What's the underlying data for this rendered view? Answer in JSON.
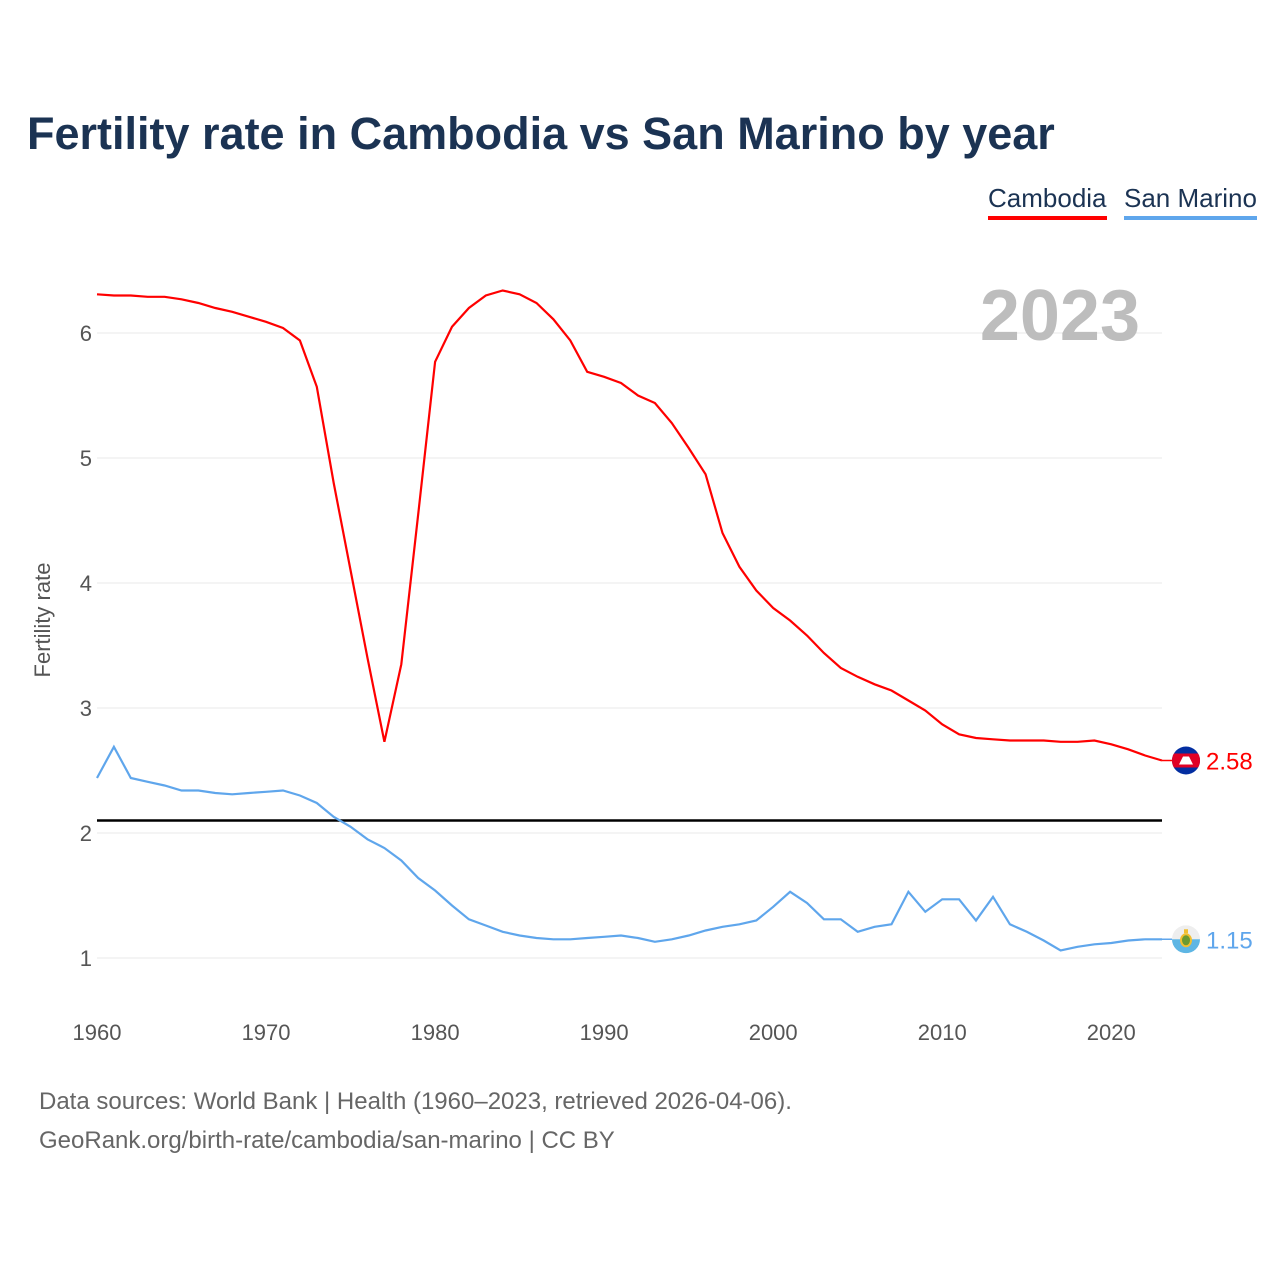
{
  "title": "Fertility rate in Cambodia vs San Marino by year",
  "legend": [
    "Cambodia",
    "San Marino"
  ],
  "year_watermark": "2023",
  "sources": {
    "line1": "Data sources: World Bank | Health (1960–2023, retrieved 2026-04-06).",
    "line2": "GeoRank.org/birth-rate/cambodia/san-marino | CC BY"
  },
  "chart_data": {
    "type": "line",
    "title": "Fertility rate in Cambodia vs San Marino by year",
    "xlabel": "",
    "ylabel": "Fertility rate",
    "xlim": [
      1960,
      2023
    ],
    "ylim": [
      0.6,
      6.6
    ],
    "x_ticks": [
      1960,
      1970,
      1980,
      1990,
      2000,
      2010,
      2020
    ],
    "y_ticks": [
      1,
      2,
      3,
      4,
      5,
      6
    ],
    "grid": true,
    "legend_position": "top-right",
    "reference_line": 2.1,
    "x": [
      1960,
      1961,
      1962,
      1963,
      1964,
      1965,
      1966,
      1967,
      1968,
      1969,
      1970,
      1971,
      1972,
      1973,
      1974,
      1975,
      1976,
      1977,
      1978,
      1979,
      1980,
      1981,
      1982,
      1983,
      1984,
      1985,
      1986,
      1987,
      1988,
      1989,
      1990,
      1991,
      1992,
      1993,
      1994,
      1995,
      1996,
      1997,
      1998,
      1999,
      2000,
      2001,
      2002,
      2003,
      2004,
      2005,
      2006,
      2007,
      2008,
      2009,
      2010,
      2011,
      2012,
      2013,
      2014,
      2015,
      2016,
      2017,
      2018,
      2019,
      2020,
      2021,
      2022,
      2023
    ],
    "series": [
      {
        "name": "Cambodia",
        "color": "#ff0000",
        "end_label": "2.58",
        "values": [
          6.31,
          6.3,
          6.3,
          6.29,
          6.29,
          6.27,
          6.24,
          6.2,
          6.17,
          6.13,
          6.09,
          6.04,
          5.94,
          5.57,
          4.8,
          4.1,
          3.4,
          2.73,
          3.35,
          4.55,
          5.77,
          6.05,
          6.2,
          6.3,
          6.34,
          6.31,
          6.24,
          6.11,
          5.94,
          5.69,
          5.65,
          5.6,
          5.5,
          5.44,
          5.28,
          5.08,
          4.87,
          4.4,
          4.13,
          3.94,
          3.8,
          3.7,
          3.58,
          3.44,
          3.32,
          3.25,
          3.19,
          3.14,
          3.06,
          2.98,
          2.87,
          2.79,
          2.76,
          2.75,
          2.74,
          2.74,
          2.74,
          2.73,
          2.73,
          2.74,
          2.71,
          2.67,
          2.62,
          2.58
        ]
      },
      {
        "name": "San Marino",
        "color": "#5fa6ec",
        "end_label": "1.15",
        "values": [
          2.44,
          2.69,
          2.44,
          2.41,
          2.38,
          2.34,
          2.34,
          2.32,
          2.31,
          2.32,
          2.33,
          2.34,
          2.3,
          2.24,
          2.13,
          2.05,
          1.95,
          1.88,
          1.78,
          1.64,
          1.54,
          1.42,
          1.31,
          1.26,
          1.21,
          1.18,
          1.16,
          1.15,
          1.15,
          1.16,
          1.17,
          1.18,
          1.16,
          1.13,
          1.15,
          1.18,
          1.22,
          1.25,
          1.27,
          1.3,
          1.41,
          1.53,
          1.44,
          1.31,
          1.31,
          1.21,
          1.25,
          1.27,
          1.53,
          1.37,
          1.47,
          1.47,
          1.3,
          1.49,
          1.27,
          1.21,
          1.14,
          1.06,
          1.09,
          1.11,
          1.12,
          1.14,
          1.15,
          1.15
        ]
      }
    ]
  }
}
